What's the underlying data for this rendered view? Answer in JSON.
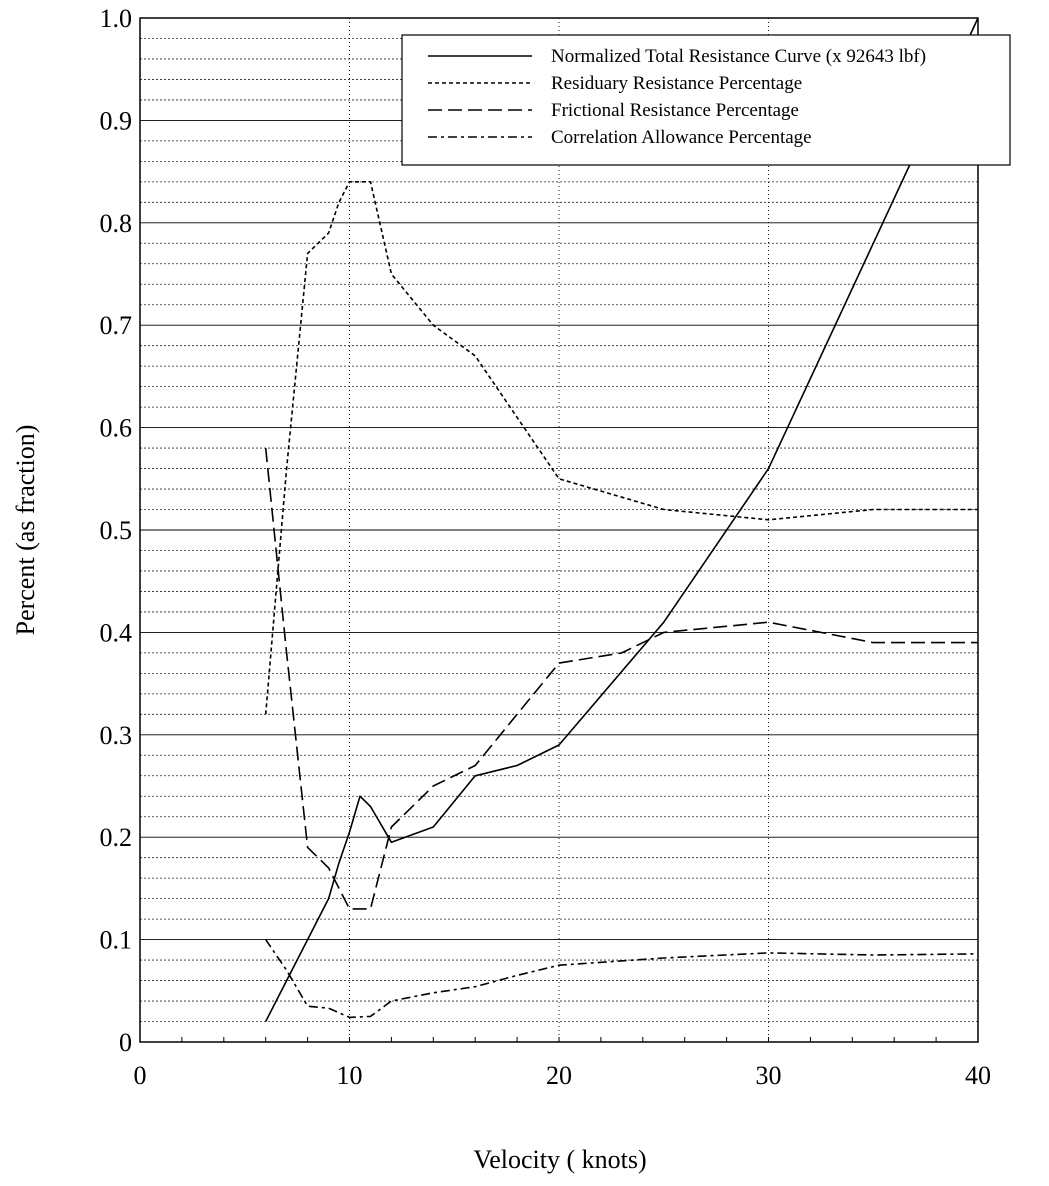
{
  "chart_data": {
    "type": "line",
    "title": "",
    "xlabel": "Velocity ( knots)",
    "ylabel": "Percent (as fraction)",
    "xlim": [
      0,
      40
    ],
    "ylim": [
      0,
      1.0
    ],
    "xticks": [
      0,
      10,
      20,
      30,
      40
    ],
    "xtick_labels": [
      "0",
      "10",
      "20",
      "30",
      "40"
    ],
    "yticks": [
      0,
      0.1,
      0.2,
      0.3,
      0.4,
      0.5,
      0.6,
      0.7,
      0.8,
      0.9,
      1.0
    ],
    "ytick_labels": [
      "0",
      "0.1",
      "0.2",
      "0.3",
      "0.4",
      "0.5",
      "0.6",
      "0.7",
      "0.8",
      "0.9",
      "1.0"
    ],
    "grid": true,
    "legend_position": "top-right",
    "series": [
      {
        "name": "Normalized Total Resistance Curve (x 92643 lbf)",
        "dash": "solid",
        "x": [
          6,
          7,
          8,
          9,
          9.5,
          10,
          10.5,
          11,
          12,
          14,
          16,
          18,
          20,
          25,
          30,
          35,
          40
        ],
        "y": [
          0.02,
          0.06,
          0.1,
          0.14,
          0.175,
          0.205,
          0.24,
          0.23,
          0.195,
          0.21,
          0.26,
          0.27,
          0.29,
          0.41,
          0.56,
          0.78,
          1.0
        ]
      },
      {
        "name": "Residuary Resistance Percentage",
        "dash": "short-dash",
        "x": [
          6,
          7,
          8,
          9,
          9.5,
          10,
          11,
          12,
          14,
          16,
          18,
          20,
          25,
          30,
          35,
          40
        ],
        "y": [
          0.32,
          0.56,
          0.77,
          0.79,
          0.82,
          0.84,
          0.84,
          0.75,
          0.7,
          0.67,
          0.61,
          0.55,
          0.52,
          0.51,
          0.52,
          0.52
        ]
      },
      {
        "name": "Frictional Resistance Percentage",
        "dash": "long-dash",
        "x": [
          6,
          7,
          8,
          9,
          10,
          11,
          12,
          14,
          16,
          18,
          20,
          23,
          25,
          30,
          35,
          40
        ],
        "y": [
          0.58,
          0.38,
          0.19,
          0.17,
          0.13,
          0.13,
          0.21,
          0.25,
          0.27,
          0.32,
          0.37,
          0.38,
          0.4,
          0.41,
          0.39,
          0.39
        ]
      },
      {
        "name": "Correlation Allowance  Percentage",
        "dash": "dash-dot",
        "x": [
          6,
          7,
          8,
          9,
          10,
          11,
          12,
          14,
          16,
          18,
          20,
          25,
          30,
          35,
          40
        ],
        "y": [
          0.1,
          0.07,
          0.035,
          0.033,
          0.024,
          0.025,
          0.04,
          0.048,
          0.054,
          0.065,
          0.075,
          0.082,
          0.087,
          0.085,
          0.086
        ]
      }
    ]
  }
}
